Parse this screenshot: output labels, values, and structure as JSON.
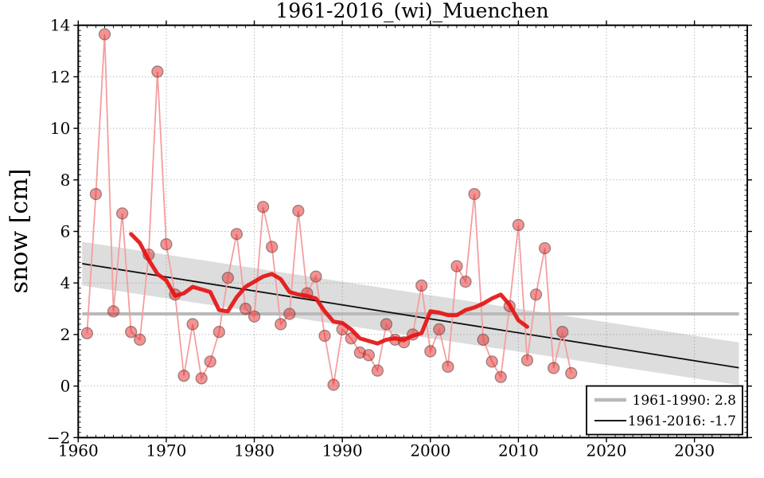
{
  "figure": {
    "title": "1961-2016_(wi)_Muenchen",
    "ylabel": "snow [cm]",
    "background": "#ffffff"
  },
  "legend": {
    "items": [
      {
        "label": "1961-1990: 2.8",
        "color": "#b9b9b9",
        "line_width": 4.5
      },
      {
        "label": "1961-2016: -1.7",
        "color": "#1a1a1a",
        "line_width": 2
      }
    ]
  },
  "colors": {
    "annual_line": "#f59e9e",
    "annual_marker_fill": "rgba(230,40,40,0.5)",
    "annual_marker_edge": "rgba(80,70,70,0.55)",
    "running_mean": "#e51212",
    "trend": "#111111",
    "band": "rgba(128,128,128,0.27)",
    "median": "#b9b9b9",
    "grid": "#999999",
    "spine": "#000000"
  },
  "chart_data": {
    "type": "line",
    "title": "1961-2016_(wi)_Muenchen",
    "xlabel": "",
    "ylabel": "snow [cm]",
    "xlim": [
      1960,
      2036
    ],
    "ylim": [
      -2,
      14
    ],
    "x_ticks": [
      1960,
      1970,
      1980,
      1990,
      2000,
      2010,
      2020,
      2030
    ],
    "y_ticks": [
      -2,
      0,
      2,
      4,
      6,
      8,
      10,
      12,
      14
    ],
    "grid": true,
    "legend_position": "lower right",
    "series": [
      {
        "name": "annual-snow",
        "kind": "scatter-line",
        "x": [
          1961,
          1962,
          1963,
          1964,
          1965,
          1966,
          1967,
          1968,
          1969,
          1970,
          1971,
          1972,
          1973,
          1974,
          1975,
          1976,
          1977,
          1978,
          1979,
          1980,
          1981,
          1982,
          1983,
          1984,
          1985,
          1986,
          1987,
          1988,
          1989,
          1990,
          1991,
          1992,
          1993,
          1994,
          1995,
          1996,
          1997,
          1998,
          1999,
          2000,
          2001,
          2002,
          2003,
          2004,
          2005,
          2006,
          2007,
          2008,
          2009,
          2010,
          2011,
          2012,
          2013,
          2014,
          2015,
          2016
        ],
        "values": [
          2.05,
          7.45,
          13.65,
          2.9,
          6.7,
          2.1,
          1.8,
          5.1,
          12.2,
          5.5,
          3.55,
          0.4,
          2.4,
          0.3,
          0.95,
          2.1,
          4.2,
          5.9,
          3.0,
          2.7,
          6.95,
          5.4,
          2.4,
          2.8,
          6.8,
          3.6,
          4.25,
          1.95,
          0.05,
          2.2,
          1.85,
          1.3,
          1.2,
          0.6,
          2.4,
          1.8,
          1.7,
          2.0,
          3.9,
          1.35,
          2.2,
          0.75,
          4.65,
          4.05,
          7.45,
          1.8,
          0.95,
          0.35,
          3.1,
          6.25,
          1.0,
          3.55,
          5.35,
          0.7,
          2.1,
          0.5
        ]
      },
      {
        "name": "running-mean",
        "kind": "line",
        "x": [
          1966,
          1967,
          1968,
          1969,
          1970,
          1971,
          1972,
          1973,
          1974,
          1975,
          1976,
          1977,
          1978,
          1979,
          1980,
          1981,
          1982,
          1983,
          1984,
          1985,
          1986,
          1987,
          1988,
          1989,
          1990,
          1991,
          1992,
          1993,
          1994,
          1995,
          1996,
          1997,
          1998,
          1999,
          2000,
          2001,
          2002,
          2003,
          2004,
          2005,
          2006,
          2007,
          2008,
          2009,
          2010,
          2011
        ],
        "values": [
          5.9,
          5.55,
          4.9,
          4.35,
          4.1,
          3.5,
          3.6,
          3.85,
          3.75,
          3.65,
          2.95,
          2.9,
          3.45,
          3.85,
          4.05,
          4.25,
          4.35,
          4.15,
          3.65,
          3.55,
          3.5,
          3.4,
          2.9,
          2.5,
          2.45,
          2.2,
          1.85,
          1.75,
          1.65,
          1.8,
          1.85,
          1.8,
          1.95,
          2.05,
          2.9,
          2.85,
          2.75,
          2.75,
          2.95,
          3.05,
          3.2,
          3.4,
          3.55,
          3.15,
          2.55,
          2.3
        ]
      },
      {
        "name": "trend-1961-2016",
        "kind": "line",
        "x": [
          1960.45,
          2035.05
        ],
        "values": [
          4.75,
          0.71
        ]
      },
      {
        "name": "trend-confidence-band",
        "kind": "band",
        "x": [
          1960.45,
          2035.05
        ],
        "top": [
          5.6,
          1.69
        ],
        "bottom": [
          3.9,
          0.04
        ]
      },
      {
        "name": "median-1961-1990",
        "kind": "hline",
        "x": [
          1960.45,
          2035.05
        ],
        "value": 2.8
      }
    ]
  }
}
